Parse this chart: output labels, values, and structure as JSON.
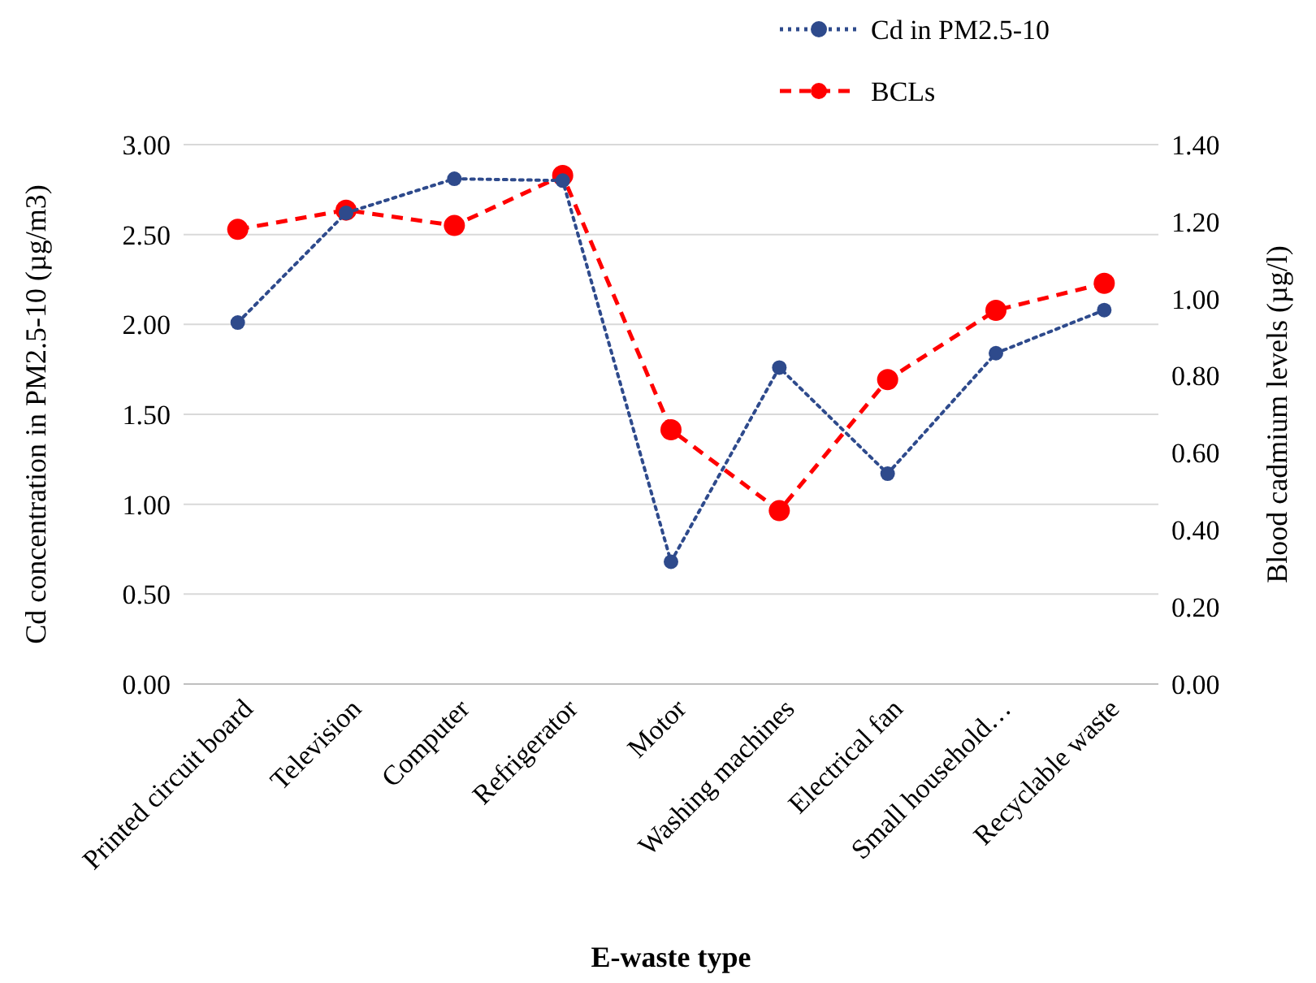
{
  "chart_data": {
    "type": "line",
    "xlabel": "E-waste type",
    "ylabel": "Cd concentration in PM2.5-10 (µg/m3)",
    "y2label": "Blood cadmium levels (µg/l)",
    "categories": [
      "Printed circuit board",
      "Television",
      "Computer",
      "Refrigerator",
      "Motor",
      "Washing machines",
      "Electrical fan",
      "Small household…",
      "Recyclable waste"
    ],
    "series": [
      {
        "name": "Cd in PM2.5-10",
        "color": "#2e4a8c",
        "line_style": "dotted",
        "marker": "circle",
        "values": [
          2.01,
          2.62,
          2.81,
          2.8,
          0.68,
          1.76,
          1.17,
          1.84,
          2.08
        ]
      },
      {
        "name": "BCLs",
        "color": "#ff0000",
        "line_style": "dashed",
        "marker": "circle",
        "axis": "y2",
        "values": [
          1.18,
          1.23,
          1.19,
          1.32,
          0.66,
          0.45,
          0.79,
          0.97,
          1.04
        ]
      }
    ],
    "ylim": [
      0,
      3
    ],
    "yticks": [
      {
        "value": 0,
        "label": "0.00"
      },
      {
        "value": 0.5,
        "label": "0.50"
      },
      {
        "value": 1,
        "label": "1.00"
      },
      {
        "value": 1.5,
        "label": "1.50"
      },
      {
        "value": 2,
        "label": "2.00"
      },
      {
        "value": 2.5,
        "label": "2.50"
      },
      {
        "value": 3,
        "label": "3.00"
      }
    ],
    "y2lim": [
      0,
      1.4
    ],
    "y2ticks": [
      {
        "value": 0,
        "label": "0.00"
      },
      {
        "value": 0.2,
        "label": "0.20"
      },
      {
        "value": 0.4,
        "label": "0.40"
      },
      {
        "value": 0.6,
        "label": "0.60"
      },
      {
        "value": 0.8,
        "label": "0.80"
      },
      {
        "value": 1,
        "label": "1.00"
      },
      {
        "value": 1.2,
        "label": "1.20"
      },
      {
        "value": 1.4,
        "label": "1.40"
      }
    ],
    "grid": "y",
    "legend": "top right"
  }
}
